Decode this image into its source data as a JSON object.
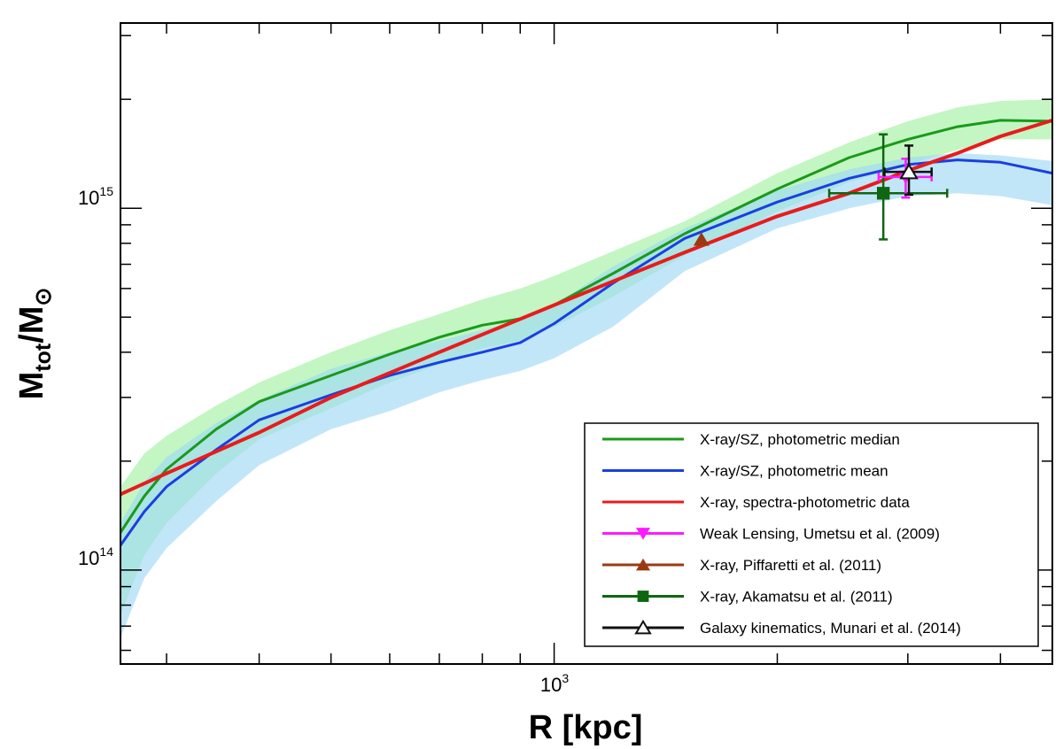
{
  "chart_data": {
    "type": "line",
    "scale": {
      "x": "log",
      "y": "log"
    },
    "xlabel": "R [kpc]",
    "ylabel": {
      "main": "M",
      "sub_tot": "tot",
      "slash": "/M",
      "sub_sun": "⊙"
    },
    "xlim": [
      260,
      4700
    ],
    "ylim": [
      55000000000000,
      3250000000000000
    ],
    "x_tick_labels": [
      {
        "value": 1000,
        "base": "10",
        "exp": "3"
      }
    ],
    "y_tick_labels": [
      {
        "value": 100000000000000,
        "base": "10",
        "exp": "14"
      },
      {
        "value": 1000000000000000,
        "base": "10",
        "exp": "15"
      }
    ],
    "x_minor_ticks": [
      300,
      400,
      500,
      600,
      700,
      800,
      900,
      2000,
      3000,
      4000
    ],
    "y_minor_ticks": [
      60000000000000,
      70000000000000,
      80000000000000,
      90000000000000,
      200000000000000,
      300000000000000,
      400000000000000,
      500000000000000,
      600000000000000,
      700000000000000,
      800000000000000,
      900000000000000,
      2000000000000000,
      3000000000000000
    ],
    "bands": [
      {
        "name": "median-band",
        "color": "#b9f5b9",
        "opacity": 0.85,
        "x": [
          260,
          280,
          300,
          350,
          400,
          500,
          600,
          700,
          800,
          900,
          1000,
          1200,
          1500,
          2000,
          2500,
          3000,
          3500,
          4000,
          4700
        ],
        "upper": [
          170000000000000.0,
          210000000000000.0,
          235000000000000.0,
          285000000000000.0,
          330000000000000.0,
          400000000000000.0,
          460000000000000.0,
          510000000000000.0,
          560000000000000.0,
          600000000000000.0,
          650000000000000.0,
          760000000000000.0,
          920000000000000.0,
          1250000000000000.0,
          1520000000000000.0,
          1740000000000000.0,
          1900000000000000.0,
          1980000000000000.0,
          2000000000000000.0
        ],
        "lower": [
          75000000000000.0,
          110000000000000.0,
          135000000000000.0,
          185000000000000.0,
          230000000000000.0,
          280000000000000.0,
          330000000000000.0,
          370000000000000.0,
          410000000000000.0,
          430000000000000.0,
          470000000000000.0,
          570000000000000.0,
          740000000000000.0,
          980000000000000.0,
          1180000000000000.0,
          1320000000000000.0,
          1450000000000000.0,
          1550000000000000.0,
          1550000000000000.0
        ]
      },
      {
        "name": "mean-band",
        "color": "#9fd8f5",
        "opacity": 0.65,
        "x": [
          260,
          280,
          300,
          350,
          400,
          500,
          600,
          700,
          800,
          900,
          1000,
          1200,
          1500,
          2000,
          2500,
          3000,
          3500,
          4000,
          4700
        ],
        "upper": [
          135000000000000.0,
          175000000000000.0,
          205000000000000.0,
          255000000000000.0,
          295000000000000.0,
          360000000000000.0,
          400000000000000.0,
          430000000000000.0,
          460000000000000.0,
          490000000000000.0,
          540000000000000.0,
          690000000000000.0,
          880000000000000.0,
          1120000000000000.0,
          1280000000000000.0,
          1380000000000000.0,
          1420000000000000.0,
          1400000000000000.0,
          1350000000000000.0
        ],
        "lower": [
          65000000000000.0,
          95000000000000.0,
          115000000000000.0,
          155000000000000.0,
          195000000000000.0,
          245000000000000.0,
          275000000000000.0,
          310000000000000.0,
          335000000000000.0,
          355000000000000.0,
          385000000000000.0,
          470000000000000.0,
          670000000000000.0,
          880000000000000.0,
          1000000000000000.0,
          1080000000000000.0,
          1100000000000000.0,
          1080000000000000.0,
          1020000000000000.0
        ]
      }
    ],
    "series": [
      {
        "name": "X-ray/SZ, photometric median",
        "color": "#1a9a1a",
        "width": 3,
        "x": [
          260,
          280,
          300,
          350,
          400,
          500,
          600,
          700,
          800,
          900,
          1000,
          1200,
          1500,
          2000,
          2500,
          3000,
          3500,
          4000,
          4700
        ],
        "y": [
          127000000000000.0,
          160000000000000.0,
          190000000000000.0,
          245000000000000.0,
          292000000000000.0,
          345000000000000.0,
          395000000000000.0,
          440000000000000.0,
          475000000000000.0,
          495000000000000.0,
          540000000000000.0,
          660000000000000.0,
          850000000000000.0,
          1130000000000000.0,
          1380000000000000.0,
          1550000000000000.0,
          1680000000000000.0,
          1750000000000000.0,
          1740000000000000.0
        ]
      },
      {
        "name": "X-ray/SZ, photometric mean",
        "color": "#1a3fe0",
        "width": 3,
        "x": [
          260,
          280,
          300,
          350,
          400,
          500,
          600,
          700,
          800,
          900,
          1000,
          1200,
          1500,
          2000,
          2500,
          3000,
          3500,
          4000,
          4700
        ],
        "y": [
          117000000000000.0,
          145000000000000.0,
          170000000000000.0,
          215000000000000.0,
          260000000000000.0,
          305000000000000.0,
          345000000000000.0,
          375000000000000.0,
          400000000000000.0,
          425000000000000.0,
          480000000000000.0,
          620000000000000.0,
          825000000000000.0,
          1040000000000000.0,
          1210000000000000.0,
          1320000000000000.0,
          1360000000000000.0,
          1340000000000000.0,
          1250000000000000.0
        ]
      },
      {
        "name": "X-ray, spectra-photometric data",
        "color": "#e81c1c",
        "width": 4,
        "x": [
          260,
          300,
          400,
          500,
          700,
          1000,
          1500,
          2000,
          2500,
          3000,
          3500,
          4000,
          4700
        ],
        "y": [
          162000000000000.0,
          185000000000000.0,
          240000000000000.0,
          300000000000000.0,
          400000000000000.0,
          540000000000000.0,
          755000000000000.0,
          950000000000000.0,
          1100000000000000.0,
          1270000000000000.0,
          1420000000000000.0,
          1580000000000000.0,
          1750000000000000.0
        ]
      }
    ],
    "points": [
      {
        "name": "Weak Lensing, Umetsu et al. (2009)",
        "color": "#ff1aff",
        "marker": "triangle-down",
        "x": 2980,
        "y": 1220000000000000.0,
        "xerr": [
          2740,
          3230
        ],
        "yerr": [
          1070000000000000.0,
          1370000000000000.0
        ]
      },
      {
        "name": "X-ray, Piffaretti et al. (2011)",
        "color": "#9b3a10",
        "marker": "triangle-up",
        "x": 1580,
        "y": 820000000000000.0
      },
      {
        "name": "X-ray, Akamatsu et al. (2011)",
        "color": "#0f6610",
        "marker": "square",
        "x": 2780,
        "y": 1100000000000000.0,
        "xerr": [
          2350,
          3390
        ],
        "yerr": [
          820000000000000.0,
          1600000000000000.0
        ]
      },
      {
        "name": "Galaxy kinematics, Munari et al. (2014)",
        "color": "#111111",
        "marker": "triangle-up-open",
        "x": 3010,
        "y": 1260000000000000.0,
        "xerr": [
          2790,
          3230
        ],
        "yerr": [
          1090000000000000.0,
          1490000000000000.0
        ]
      }
    ],
    "legend": {
      "position": "lower-right",
      "entries": [
        {
          "label": "X-ray/SZ, photometric median",
          "color": "#1a9a1a",
          "marker": "none"
        },
        {
          "label": "X-ray/SZ, photometric mean",
          "color": "#1a3fe0",
          "marker": "none"
        },
        {
          "label": "X-ray, spectra-photometric data",
          "color": "#e81c1c",
          "marker": "none"
        },
        {
          "label": "Weak Lensing, Umetsu et al. (2009)",
          "color": "#ff1aff",
          "marker": "triangle-down"
        },
        {
          "label": "X-ray, Piffaretti et al. (2011)",
          "color": "#9b3a10",
          "marker": "triangle-up"
        },
        {
          "label": "X-ray, Akamatsu et al. (2011)",
          "color": "#0f6610",
          "marker": "square"
        },
        {
          "label": "Galaxy kinematics, Munari et al. (2014)",
          "color": "#111111",
          "marker": "triangle-up-open"
        }
      ]
    }
  }
}
